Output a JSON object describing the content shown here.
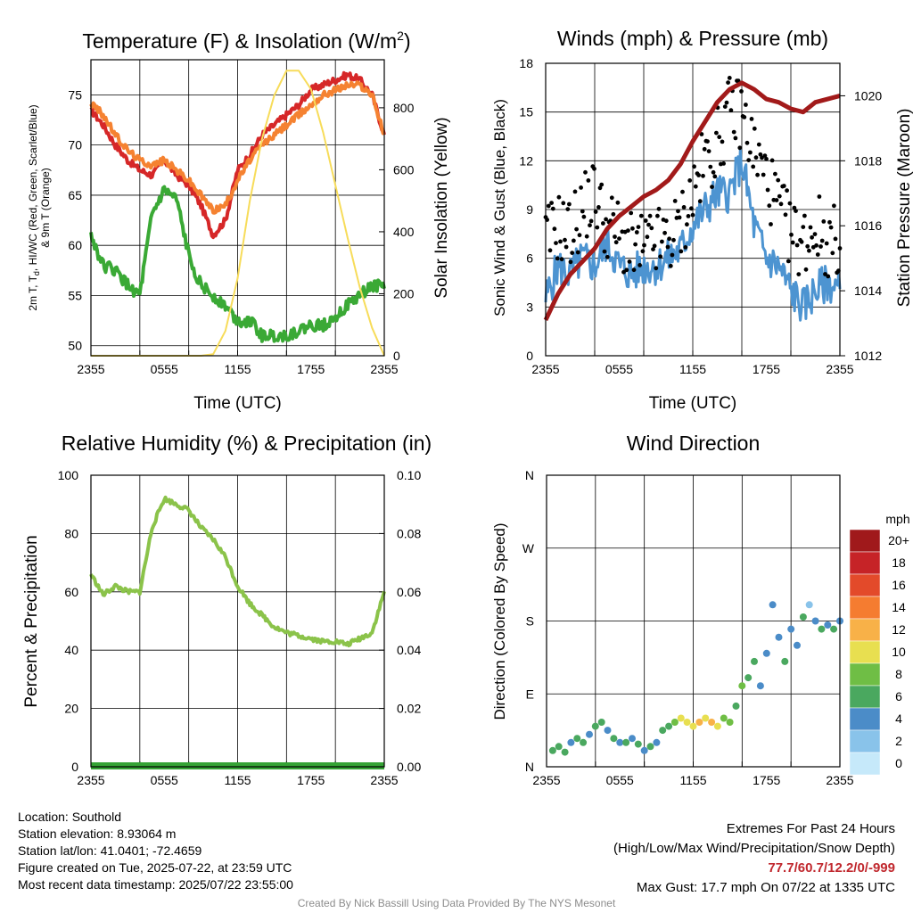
{
  "panels": {
    "temp": {
      "title": "Temperature (F) & Insolation (W/m",
      "title_sup": "2",
      "title_end": ")",
      "ylabel_line1": "2m T, T",
      "ylabel_sub": "d",
      "ylabel_line1_end": ", HI/WC (Red, Green, Scarlet/Blue)",
      "ylabel_line2": "& 9m T (Orange)",
      "y2label": "Solar Insolation (Yellow)",
      "xlabel": "Time (UTC)"
    },
    "wind": {
      "title": "Winds (mph) & Pressure (mb)",
      "ylabel": "Sonic Wind & Gust (Blue, Black)",
      "y2label": "Station Pressure (Maroon)",
      "xlabel": "Time (UTC)"
    },
    "rh": {
      "title": "Relative Humidity (%) & Precipitation (in)",
      "ylabel": "Percent & Precipitation"
    },
    "dir": {
      "title": "Wind Direction",
      "ylabel": "Direction (Colored By Speed)",
      "legend_title": "mph"
    }
  },
  "footer": {
    "location": "Location: Southold",
    "elevation": "Station elevation: 8.93064 m",
    "latlon": "Station lat/lon: 41.0401; -72.4659",
    "created": "Figure created on Tue, 2025-07-22, at 23:59 UTC",
    "recent": "Most recent data timestamp: 2025/07/22 23:55:00",
    "extremes_title": "Extremes For Past 24 Hours",
    "extremes_sub": "(High/Low/Max Wind/Precipitation/Snow Depth)",
    "extremes_values": "77.7/60.7/12.2/0/-999",
    "max_gust": "Max Gust: 17.7 mph On 07/22 at 1335 UTC",
    "credit": "Created By Nick Bassill Using Data Provided By The NYS Mesonet"
  },
  "colors": {
    "temp_red": "#d62728",
    "temp_orange": "#f58231",
    "dewpoint_green": "#3aa935",
    "insolation_yellow": "#f7dc5a",
    "wind_blue": "#4d94d1",
    "gust_black": "#000000",
    "pressure_maroon": "#a21a1a",
    "rh_green": "#8bc34a",
    "precip_green": "#35a335",
    "extremes_red": "#c0272d",
    "credit_gray": "#8c8c8c"
  },
  "chart_data": [
    {
      "type": "line",
      "title": "Temperature (F) & Insolation (W/m2)",
      "xlabel": "Time (UTC)",
      "x_ticks": [
        "2355",
        "0555",
        "1155",
        "1755",
        "2355"
      ],
      "y_left_ticks": [
        50,
        55,
        60,
        65,
        70,
        75
      ],
      "y_left_range": [
        49,
        78.5
      ],
      "y_right_ticks": [
        0,
        200,
        400,
        600,
        800
      ],
      "y_right_range": [
        0,
        955
      ],
      "x_hours": [
        0,
        1,
        2,
        3,
        4,
        5,
        6,
        7,
        8,
        9,
        10,
        11,
        12,
        13,
        14,
        15,
        16,
        17,
        18,
        19,
        20,
        21,
        22,
        23,
        24
      ],
      "series": [
        {
          "color": "red",
          "values": [
            73.5,
            72,
            70,
            68.5,
            67.5,
            67,
            68.5,
            67,
            66,
            64,
            61,
            62.5,
            67.5,
            69,
            71,
            72,
            73,
            74,
            75.5,
            76,
            76.5,
            77,
            76.5,
            75,
            71
          ]
        },
        {
          "color": "orange",
          "values": [
            74.2,
            73,
            71,
            69.5,
            68.5,
            68,
            68.5,
            67.5,
            66.5,
            65,
            63.5,
            64,
            66.5,
            68.5,
            70,
            71,
            72,
            73,
            74,
            75,
            75.5,
            76,
            76,
            75,
            71
          ]
        },
        {
          "color": "green",
          "values": [
            61,
            58,
            57.5,
            56,
            55,
            63,
            65.5,
            64.5,
            59,
            56,
            55,
            54,
            52.5,
            52.5,
            51,
            51,
            51,
            51.5,
            52,
            52,
            53,
            54,
            55,
            56,
            56
          ]
        },
        {
          "y_axis": "right",
          "color": "yellow",
          "values": [
            0,
            0,
            0,
            0,
            0,
            0,
            0,
            0,
            0,
            0,
            5,
            80,
            250,
            500,
            700,
            840,
            920,
            920,
            860,
            720,
            550,
            380,
            220,
            90,
            0
          ]
        }
      ]
    },
    {
      "type": "line",
      "title": "Winds (mph) & Pressure (mb)",
      "xlabel": "Time (UTC)",
      "x_ticks": [
        "2355",
        "0555",
        "1155",
        "1755",
        "2355"
      ],
      "y_left_ticks": [
        0,
        3,
        6,
        9,
        12,
        15,
        18
      ],
      "y_left_range": [
        0,
        18
      ],
      "y_right_ticks": [
        1012,
        1014,
        1016,
        1018,
        1020
      ],
      "y_right_range": [
        1012,
        1021
      ],
      "x_hours": [
        0,
        1,
        2,
        3,
        4,
        5,
        6,
        7,
        8,
        9,
        10,
        11,
        12,
        13,
        14,
        15,
        16,
        17,
        18,
        19,
        20,
        21,
        22,
        23,
        24
      ],
      "series": [
        {
          "color": "blue",
          "values": [
            3.5,
            5.5,
            5,
            6,
            5.5,
            7,
            5.5,
            5,
            5.5,
            5.5,
            6,
            6.5,
            8,
            9,
            10,
            10,
            12,
            8,
            6,
            5.5,
            4,
            3,
            4,
            4.5,
            4
          ]
        },
        {
          "color": "black",
          "type": "scatter",
          "values": [
            7,
            8,
            7.5,
            9,
            10,
            8,
            7.5,
            6.5,
            6.5,
            7,
            7,
            8,
            10,
            12,
            13,
            15,
            15,
            12.5,
            11,
            9,
            7.5,
            7,
            8,
            7,
            7
          ]
        },
        {
          "y_axis": "right",
          "color": "maroon",
          "values": [
            1013.1,
            1013.9,
            1014.5,
            1014.9,
            1015.3,
            1015.9,
            1016.3,
            1016.6,
            1016.9,
            1017.1,
            1017.4,
            1017.9,
            1018.6,
            1019.2,
            1019.8,
            1020.2,
            1020.4,
            1020.2,
            1019.9,
            1019.8,
            1019.6,
            1019.5,
            1019.8,
            1019.9,
            1020.0
          ]
        }
      ]
    },
    {
      "type": "line",
      "title": "Relative Humidity (%) & Precipitation (in)",
      "x_ticks": [
        "2355",
        "0555",
        "1155",
        "1755",
        "2355"
      ],
      "y_left_ticks": [
        0,
        20,
        40,
        60,
        80,
        100
      ],
      "y_left_range": [
        0,
        100
      ],
      "y_right_ticks": [
        "0.00",
        "0.02",
        "0.04",
        "0.06",
        "0.08",
        "0.10"
      ],
      "y_right_range": [
        0,
        0.1
      ],
      "x_hours": [
        0,
        1,
        2,
        3,
        4,
        5,
        6,
        7,
        8,
        9,
        10,
        11,
        12,
        13,
        14,
        15,
        16,
        17,
        18,
        19,
        20,
        21,
        22,
        23,
        24
      ],
      "series": [
        {
          "color": "light-green",
          "values": [
            66,
            59,
            62,
            60,
            60,
            82,
            92,
            90,
            88,
            82,
            78,
            72,
            62,
            56,
            52,
            48,
            46,
            45,
            44,
            43,
            43,
            42,
            44,
            46,
            60
          ]
        },
        {
          "y_axis": "right",
          "color": "green",
          "values": [
            0,
            0,
            0,
            0,
            0,
            0,
            0,
            0,
            0,
            0,
            0,
            0,
            0,
            0,
            0,
            0,
            0,
            0,
            0,
            0,
            0,
            0,
            0,
            0,
            0
          ]
        }
      ]
    },
    {
      "type": "scatter",
      "title": "Wind Direction",
      "x_ticks": [
        "2355",
        "0555",
        "1155",
        "1755",
        "2355"
      ],
      "y_ticks": [
        "N",
        "E",
        "S",
        "W",
        "N"
      ],
      "y_range_degrees": [
        0,
        360
      ],
      "colorbar_unit": "mph",
      "colorbar_labels": [
        "0",
        "2",
        "4",
        "6",
        "8",
        "10",
        "12",
        "14",
        "16",
        "18",
        "20+"
      ],
      "colorbar_colors": [
        "#c6e9fa",
        "#89c3ea",
        "#4b8cc8",
        "#4aa85f",
        "#6fbe45",
        "#e8df50",
        "#f8b148",
        "#f57c30",
        "#e34a2a",
        "#c62327",
        "#a0191b"
      ],
      "points": [
        {
          "x": 0.5,
          "dir": 20,
          "speed": 5
        },
        {
          "x": 1,
          "dir": 25,
          "speed": 6
        },
        {
          "x": 1.5,
          "dir": 18,
          "speed": 5
        },
        {
          "x": 2,
          "dir": 30,
          "speed": 4
        },
        {
          "x": 2.5,
          "dir": 35,
          "speed": 6
        },
        {
          "x": 3,
          "dir": 30,
          "speed": 5
        },
        {
          "x": 3.5,
          "dir": 40,
          "speed": 4
        },
        {
          "x": 4,
          "dir": 50,
          "speed": 6
        },
        {
          "x": 4.5,
          "dir": 55,
          "speed": 5
        },
        {
          "x": 5,
          "dir": 45,
          "speed": 4
        },
        {
          "x": 5.5,
          "dir": 35,
          "speed": 5
        },
        {
          "x": 6,
          "dir": 30,
          "speed": 4
        },
        {
          "x": 6.5,
          "dir": 30,
          "speed": 5
        },
        {
          "x": 7,
          "dir": 35,
          "speed": 4
        },
        {
          "x": 7.5,
          "dir": 28,
          "speed": 5
        },
        {
          "x": 8,
          "dir": 20,
          "speed": 4
        },
        {
          "x": 8.5,
          "dir": 25,
          "speed": 5
        },
        {
          "x": 9,
          "dir": 30,
          "speed": 4
        },
        {
          "x": 9.5,
          "dir": 45,
          "speed": 5
        },
        {
          "x": 10,
          "dir": 50,
          "speed": 6
        },
        {
          "x": 10.5,
          "dir": 55,
          "speed": 7
        },
        {
          "x": 11,
          "dir": 60,
          "speed": 9
        },
        {
          "x": 11.5,
          "dir": 55,
          "speed": 10
        },
        {
          "x": 12,
          "dir": 50,
          "speed": 9
        },
        {
          "x": 12.5,
          "dir": 55,
          "speed": 11
        },
        {
          "x": 13,
          "dir": 60,
          "speed": 10
        },
        {
          "x": 13.5,
          "dir": 55,
          "speed": 12
        },
        {
          "x": 14,
          "dir": 50,
          "speed": 9
        },
        {
          "x": 14.5,
          "dir": 60,
          "speed": 8
        },
        {
          "x": 15,
          "dir": 55,
          "speed": 7
        },
        {
          "x": 15.5,
          "dir": 75,
          "speed": 6
        },
        {
          "x": 16,
          "dir": 100,
          "speed": 8
        },
        {
          "x": 16.5,
          "dir": 110,
          "speed": 6
        },
        {
          "x": 17,
          "dir": 130,
          "speed": 5
        },
        {
          "x": 17.5,
          "dir": 100,
          "speed": 3
        },
        {
          "x": 18,
          "dir": 140,
          "speed": 4
        },
        {
          "x": 18.5,
          "dir": 200,
          "speed": 3
        },
        {
          "x": 19,
          "dir": 160,
          "speed": 4
        },
        {
          "x": 19.5,
          "dir": 130,
          "speed": 5
        },
        {
          "x": 20,
          "dir": 170,
          "speed": 3
        },
        {
          "x": 20.5,
          "dir": 150,
          "speed": 4
        },
        {
          "x": 21,
          "dir": 185,
          "speed": 5
        },
        {
          "x": 21.5,
          "dir": 200,
          "speed": 2
        },
        {
          "x": 22,
          "dir": 180,
          "speed": 4
        },
        {
          "x": 22.5,
          "dir": 170,
          "speed": 5
        },
        {
          "x": 23,
          "dir": 175,
          "speed": 4
        },
        {
          "x": 23.5,
          "dir": 170,
          "speed": 5
        },
        {
          "x": 24,
          "dir": 180,
          "speed": 4
        }
      ]
    }
  ]
}
